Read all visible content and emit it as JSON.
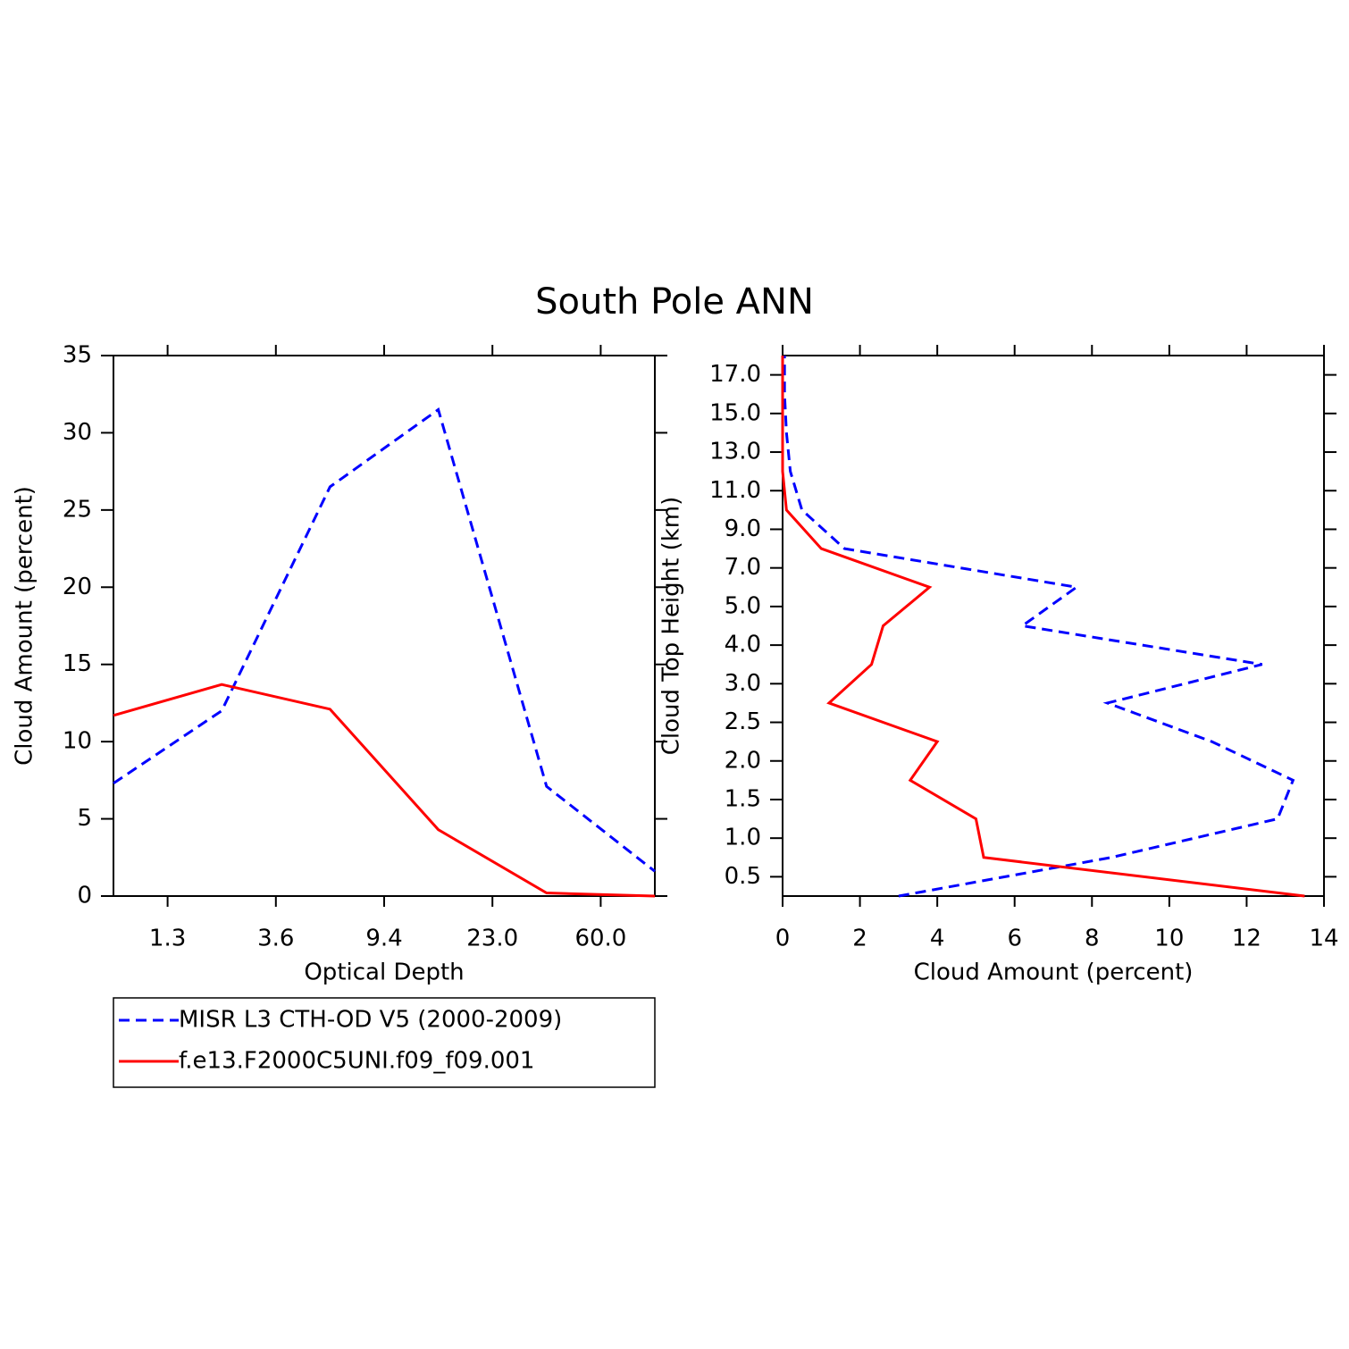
{
  "title": "South Pole ANN",
  "chart_data": [
    {
      "type": "line",
      "orientation": "vertical",
      "x_label": "Optical Depth",
      "y_label": "Cloud Amount (percent)",
      "x": [
        0,
        1,
        2,
        3,
        4,
        5
      ],
      "xlim": [
        0,
        5
      ],
      "xticks": [
        {
          "value": 0.5,
          "label": "1.3"
        },
        {
          "value": 1.5,
          "label": "3.6"
        },
        {
          "value": 2.5,
          "label": "9.4"
        },
        {
          "value": 3.5,
          "label": "23.0"
        },
        {
          "value": 4.5,
          "label": "60.0"
        }
      ],
      "ylim": [
        0,
        35
      ],
      "yticks": [
        0,
        5,
        10,
        15,
        20,
        25,
        30,
        35
      ],
      "legend": "bottom",
      "series": [
        {
          "name": "MISR L3 CTH-OD V5 (2000-2009)",
          "color": "#0000ff",
          "dashed": true,
          "values": [
            7.3,
            12.0,
            26.5,
            31.5,
            7.1,
            1.6
          ]
        },
        {
          "name": "f.e13.F2000C5UNI.f09_f09.001",
          "color": "#ff0000",
          "dashed": false,
          "values": [
            11.7,
            13.7,
            12.1,
            4.3,
            0.2,
            0.0
          ]
        }
      ]
    },
    {
      "type": "line",
      "orientation": "horizontal",
      "x_label": "Cloud Amount (percent)",
      "y_label": "Cloud Top Height (km)",
      "y": [
        0,
        1,
        2,
        3,
        4,
        5,
        6,
        7,
        8,
        9,
        10,
        11,
        12,
        13,
        14
      ],
      "ylim": [
        0,
        14
      ],
      "yticks": [
        {
          "value": 0.5,
          "label": "0.5"
        },
        {
          "value": 1.5,
          "label": "1.0"
        },
        {
          "value": 2.5,
          "label": "1.5"
        },
        {
          "value": 3.5,
          "label": "2.0"
        },
        {
          "value": 4.5,
          "label": "2.5"
        },
        {
          "value": 5.5,
          "label": "3.0"
        },
        {
          "value": 6.5,
          "label": "4.0"
        },
        {
          "value": 7.5,
          "label": "5.0"
        },
        {
          "value": 8.5,
          "label": "7.0"
        },
        {
          "value": 9.5,
          "label": "9.0"
        },
        {
          "value": 10.5,
          "label": "11.0"
        },
        {
          "value": 11.5,
          "label": "13.0"
        },
        {
          "value": 12.5,
          "label": "15.0"
        },
        {
          "value": 13.5,
          "label": "17.0"
        }
      ],
      "xlim": [
        0,
        14
      ],
      "xticks": [
        0,
        2,
        4,
        6,
        8,
        10,
        12,
        14
      ],
      "series": [
        {
          "color": "#0000ff",
          "dashed": true,
          "values": [
            3.0,
            8.5,
            12.8,
            13.2,
            11.1,
            8.4,
            12.4,
            6.2,
            7.6,
            1.6,
            0.5,
            0.2,
            0.1,
            0.05,
            0.05
          ]
        },
        {
          "color": "#ff0000",
          "dashed": false,
          "values": [
            13.5,
            5.2,
            5.0,
            3.3,
            4.0,
            1.2,
            2.3,
            2.6,
            3.8,
            1.0,
            0.1,
            0,
            0,
            0,
            0
          ]
        }
      ]
    }
  ]
}
